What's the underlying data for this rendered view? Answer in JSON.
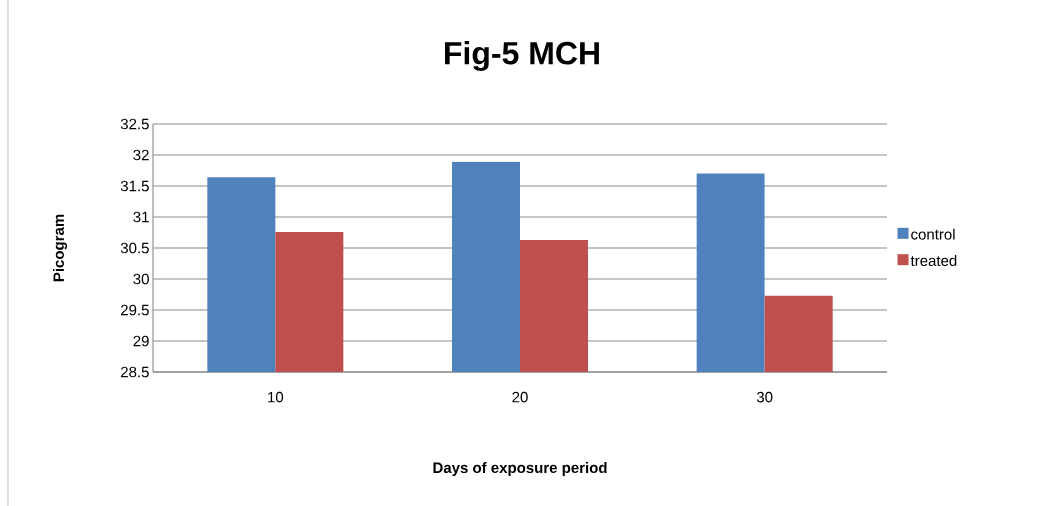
{
  "chart_data": {
    "type": "bar",
    "title": "Fig-5 MCH",
    "xlabel": "Days of exposure period",
    "ylabel": "Picogram",
    "categories": [
      "10",
      "20",
      "30"
    ],
    "series": [
      {
        "name": "control",
        "color": "#4f81bd",
        "values": [
          31.64,
          31.89,
          31.7
        ]
      },
      {
        "name": "treated",
        "color": "#c0504d",
        "values": [
          30.76,
          30.63,
          29.73
        ]
      }
    ],
    "ylim": [
      28.5,
      32.5
    ],
    "yticks": [
      28.5,
      29,
      29.5,
      30,
      30.5,
      31,
      31.5,
      32,
      32.5
    ],
    "grid": "y",
    "legend": "right"
  }
}
